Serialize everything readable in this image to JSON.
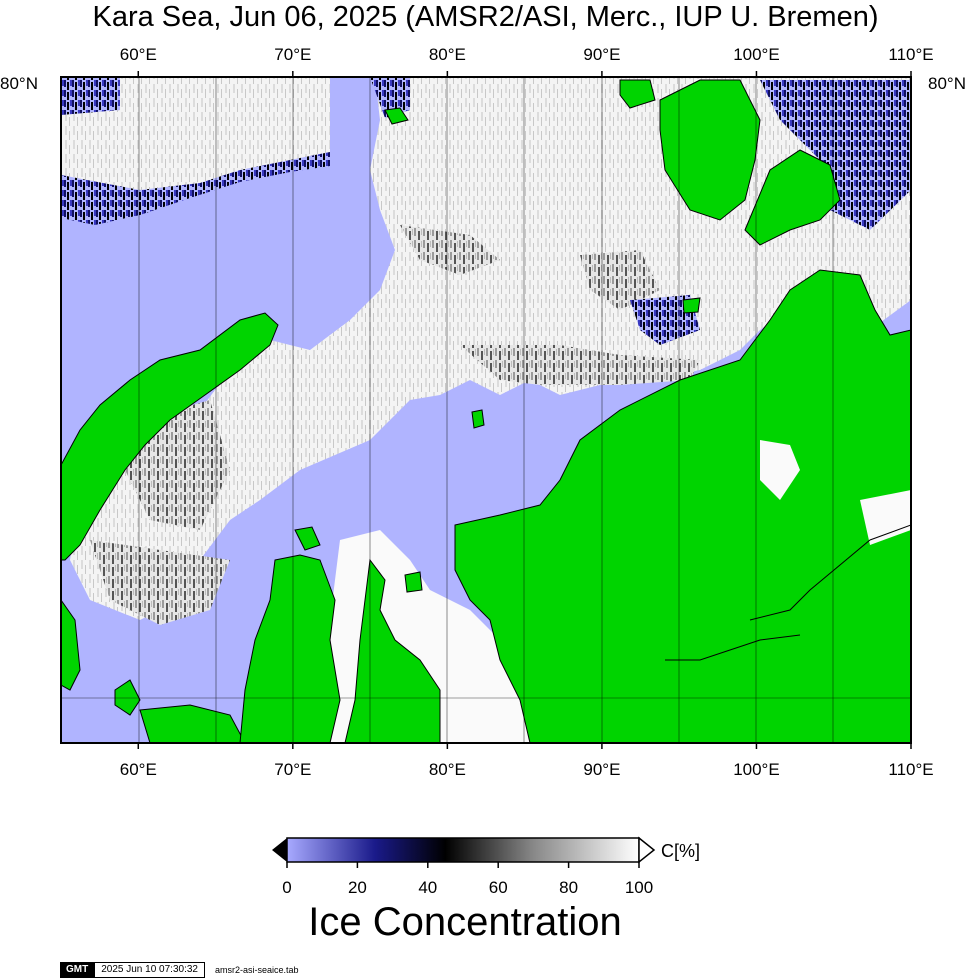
{
  "title": "Kara Sea, Jun 06, 2025 (AMSR2/ASI, Merc., IUP U. Bremen)",
  "map": {
    "lon_range": [
      55,
      110
    ],
    "lat_label": "80°N",
    "top_ticks": [
      "60°E",
      "70°E",
      "80°E",
      "90°E",
      "100°E",
      "110°E"
    ],
    "bottom_ticks": [
      "60°E",
      "70°E",
      "80°E",
      "90°E",
      "100°E",
      "110°E"
    ],
    "tick_lons": [
      60,
      70,
      80,
      90,
      100,
      110
    ],
    "colors": {
      "open_water": "#b0b4ff",
      "land": "#00d400",
      "ice_full": "#ffffff"
    }
  },
  "colorbar": {
    "ticks": [
      "0",
      "20",
      "40",
      "60",
      "80",
      "100"
    ],
    "tick_values": [
      0,
      20,
      40,
      60,
      80,
      100
    ],
    "unit": "C[%]",
    "title": "Ice Concentration",
    "stops": [
      {
        "value": 0,
        "color": "#a8aaff"
      },
      {
        "value": 25,
        "color": "#1a1a8a"
      },
      {
        "value": 45,
        "color": "#000000"
      },
      {
        "value": 70,
        "color": "#888888"
      },
      {
        "value": 100,
        "color": "#ffffff"
      }
    ]
  },
  "footer": {
    "logo": "GMT",
    "timestamp": "2025 Jun 10 07:30:32",
    "filename": "amsr2-asi-seaice.tab"
  }
}
